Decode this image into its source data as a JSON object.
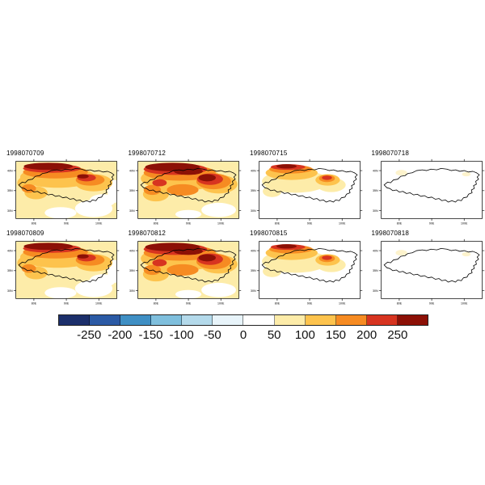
{
  "chart_data": {
    "type": "heatmap",
    "layout": "2x4 filled-contour map panels over plateau outline with shared horizontal colorbar",
    "panels": [
      {
        "timestamp": "1998070709",
        "fill_intensity": "high"
      },
      {
        "timestamp": "1998070712",
        "fill_intensity": "very-high"
      },
      {
        "timestamp": "1998070715",
        "fill_intensity": "medium"
      },
      {
        "timestamp": "1998070718",
        "fill_intensity": "none"
      },
      {
        "timestamp": "1998070809",
        "fill_intensity": "high"
      },
      {
        "timestamp": "1998070812",
        "fill_intensity": "very-high"
      },
      {
        "timestamp": "1998070815",
        "fill_intensity": "medium"
      },
      {
        "timestamp": "1998070818",
        "fill_intensity": "none"
      }
    ],
    "colorbar": {
      "orientation": "horizontal",
      "tick_labels": [
        "-250",
        "-200",
        "-150",
        "-100",
        "-50",
        "0",
        "50",
        "100",
        "150",
        "200",
        "250"
      ],
      "levels": [
        -250,
        -200,
        -150,
        -100,
        -50,
        0,
        50,
        100,
        150,
        200,
        250
      ],
      "colors": [
        "#1c2f6b",
        "#2b5aa5",
        "#3f8fc4",
        "#7fbfdd",
        "#b4daeb",
        "#e8f4fa",
        "#ffffff",
        "#fdeca9",
        "#fdc34d",
        "#f68b22",
        "#d73420",
        "#8c1006"
      ]
    },
    "map_x_ticks": [
      "80E",
      "90E",
      "100E"
    ],
    "map_y_ticks": [
      "40N",
      "35N",
      "30N"
    ]
  }
}
